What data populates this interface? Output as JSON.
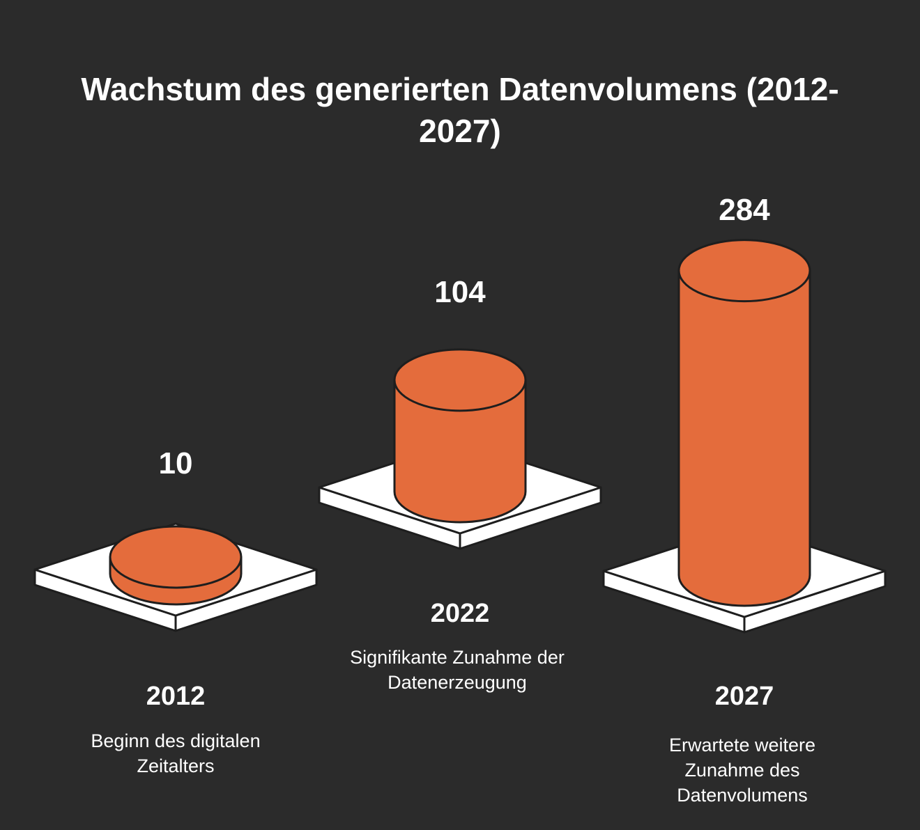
{
  "title": "Wachstum des generierten Datenvolumens (2012-2027)",
  "colors": {
    "background": "#2b2b2b",
    "cylinder": "#e46c3c",
    "platform": "#ffffff",
    "text": "#ffffff",
    "outline": "#1e1e1e"
  },
  "chart_data": {
    "type": "bar",
    "title": "Wachstum des generierten Datenvolumens (2012-2027)",
    "categories": [
      "2012",
      "2022",
      "2027"
    ],
    "values": [
      10,
      104,
      284
    ],
    "descriptions": [
      "Beginn des digitalen Zeitalters",
      "Signifikante Zunahme der Datenerzeugung",
      "Erwartete weitere Zunahme des Datenvolumens"
    ],
    "xlabel": "",
    "ylabel": ""
  }
}
